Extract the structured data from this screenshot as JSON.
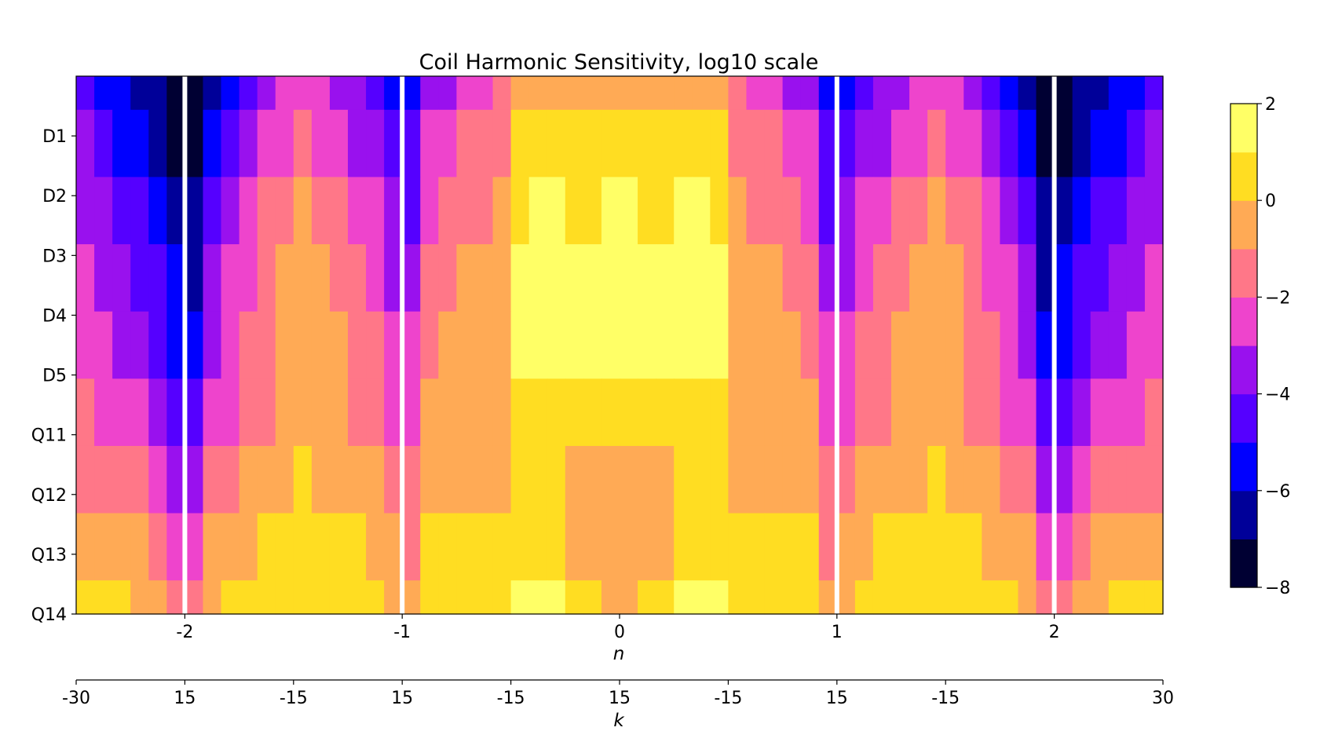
{
  "chart_data": {
    "type": "heatmap",
    "title": "Coil Harmonic Sensitivity, log10 scale",
    "xlabel": "n",
    "secondary_xlabel": "k",
    "colormap_colors": [
      "#000033",
      "#000099",
      "#0000ff",
      "#5500ff",
      "#9911ee",
      "#ee44cc",
      "#ff7788",
      "#ffaa55",
      "#ffdd22",
      "#ffff66"
    ],
    "blank_color": "#ffffff",
    "rows": [
      "D1",
      "D2",
      "D3",
      "D4",
      "D5",
      "Q11",
      "Q12",
      "Q13",
      "Q14"
    ],
    "y_ticks": [
      "D1",
      "D2",
      "D3",
      "D4",
      "D5",
      "Q11",
      "Q12",
      "Q13",
      "Q14"
    ],
    "x_range": [
      -2.5,
      2.5
    ],
    "x_ticks": [
      {
        "value": -2,
        "label": "-2"
      },
      {
        "value": -1,
        "label": "-1"
      },
      {
        "value": 0,
        "label": "0"
      },
      {
        "value": 1,
        "label": "1"
      },
      {
        "value": 2,
        "label": "2"
      }
    ],
    "k_ticks": [
      {
        "n": -2.5,
        "label": "-30"
      },
      {
        "n": -2.0,
        "label": "15"
      },
      {
        "n": -1.5,
        "label": "-15"
      },
      {
        "n": -1.0,
        "label": "15"
      },
      {
        "n": -0.5,
        "label": "-15"
      },
      {
        "n": 0.0,
        "label": "15"
      },
      {
        "n": 0.5,
        "label": "-15"
      },
      {
        "n": 1.0,
        "label": "15"
      },
      {
        "n": 1.5,
        "label": "-15"
      },
      {
        "n": 2.5,
        "label": "30"
      }
    ],
    "colorbar": {
      "range": [
        -8,
        2
      ],
      "ticks": [
        {
          "value": 2,
          "label": "2"
        },
        {
          "value": 0,
          "label": "0"
        },
        {
          "value": -2,
          "label": "−2"
        },
        {
          "value": -4,
          "label": "−4"
        },
        {
          "value": -6,
          "label": "−6"
        },
        {
          "value": -8,
          "label": "−8"
        }
      ]
    },
    "column_profiles": [
      {
        "n": 0.0,
        "values": [
          -0.5,
          0.5,
          1.2,
          1.5,
          1.4,
          0.2,
          -0.3,
          -0.4,
          -0.5
        ]
      },
      {
        "n": 0.15,
        "values": [
          -0.5,
          0.5,
          0.8,
          1.2,
          1.5,
          0.3,
          -0.2,
          -0.2,
          0.3
        ]
      },
      {
        "n": 0.3,
        "values": [
          -0.4,
          0.6,
          1.2,
          1.6,
          1.7,
          0.4,
          0.1,
          0.3,
          1.3
        ]
      },
      {
        "n": 0.45,
        "values": [
          -0.5,
          0.5,
          1.0,
          1.3,
          1.9,
          0.5,
          0.2,
          0.5,
          1.6
        ]
      },
      {
        "n": 0.5,
        "values": [
          -1.8,
          -1.0,
          -0.8,
          -0.5,
          -0.4,
          -0.3,
          0.0,
          0.4,
          0.8
        ]
      },
      {
        "n": 0.75,
        "values": [
          -2.8,
          -1.8,
          -1.4,
          -1.0,
          -0.8,
          -0.5,
          -0.2,
          0.4,
          0.8
        ]
      },
      {
        "n": 0.9,
        "values": [
          -4.0,
          -3.0,
          -2.4,
          -1.8,
          -1.4,
          -1.0,
          -0.5,
          0.0,
          0.5
        ]
      },
      {
        "n": 0.97,
        "values": [
          -5.0,
          -4.5,
          -3.6,
          -2.8,
          -2.2,
          -1.6,
          -1.0,
          -0.4,
          0.3
        ]
      },
      {
        "n": 1.5,
        "values": [
          -1.9,
          -1.6,
          -0.6,
          -0.2,
          0.0,
          -0.4,
          0.2,
          0.6,
          1.0
        ]
      },
      {
        "n": 1.75,
        "values": [
          -4.8,
          -4.0,
          -3.2,
          -2.6,
          -2.2,
          -1.8,
          -1.2,
          -0.4,
          0.4
        ]
      },
      {
        "n": 1.9,
        "values": [
          -6.3,
          -5.6,
          -4.8,
          -4.0,
          -3.4,
          -2.6,
          -1.8,
          -1.0,
          -0.2
        ]
      },
      {
        "n": 1.97,
        "values": [
          -7.6,
          -7.2,
          -6.4,
          -5.6,
          -5.0,
          -3.6,
          -2.6,
          -1.8,
          -1.2
        ]
      },
      {
        "n": 2.5,
        "values": [
          -4.5,
          -3.6,
          -3.0,
          -2.6,
          -2.2,
          -1.7,
          -1.0,
          0.0,
          1.0
        ]
      }
    ]
  }
}
